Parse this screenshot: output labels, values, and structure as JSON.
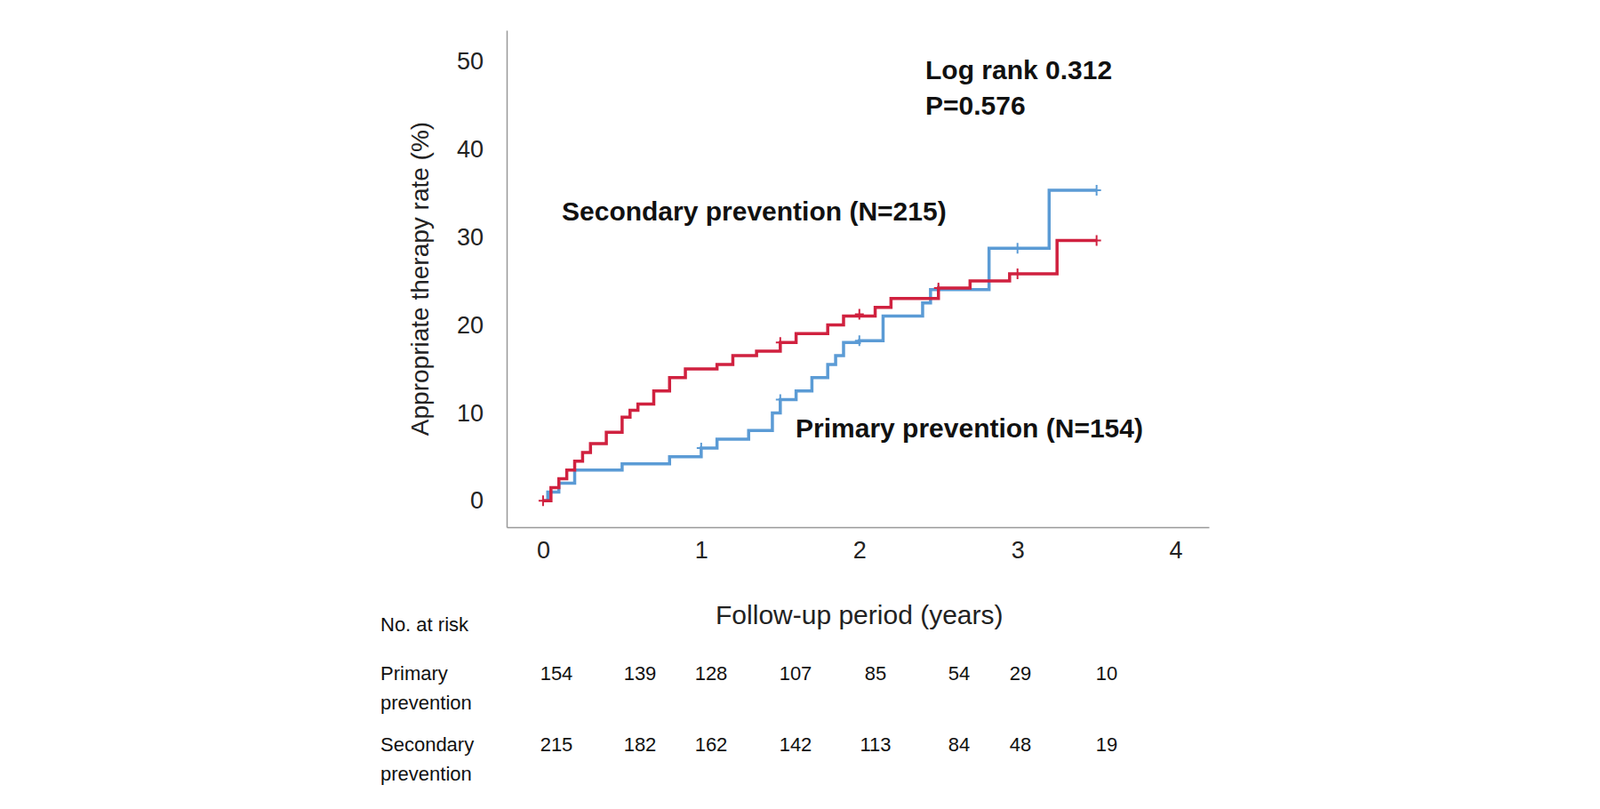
{
  "chart_data": {
    "type": "step",
    "x_label": "Follow-up period (years)",
    "y_label": "Appropriate therapy rate (%)",
    "xlim": [
      -0.23,
      4.21
    ],
    "ylim": [
      -3,
      53.5
    ],
    "xticks": [
      0,
      1,
      2,
      3,
      4
    ],
    "yticks": [
      0,
      10,
      20,
      30,
      40,
      50
    ],
    "grid": false,
    "annotations": [
      "Log rank 0.312",
      "P=0.576"
    ],
    "series": [
      {
        "name": "Primary prevention (N=154)",
        "color": "#5b9bd5",
        "x": [
          0,
          0.03,
          0.1,
          0.2,
          0.5,
          0.8,
          1.0,
          1.1,
          1.3,
          1.45,
          1.5,
          1.6,
          1.7,
          1.8,
          1.85,
          1.9,
          2.0,
          2.15,
          2.4,
          2.45,
          2.82,
          3.2,
          3.5
        ],
        "values": [
          0,
          1,
          2,
          3.5,
          4.2,
          5,
          6,
          7,
          8,
          10,
          11.5,
          12.5,
          14,
          15.5,
          16.5,
          18,
          18.2,
          21,
          22.5,
          24,
          28.7,
          35.3,
          35.3
        ],
        "censored_x": [
          1.0,
          1.5,
          2.0,
          2.5,
          3.0,
          3.5
        ],
        "censored_values": [
          6,
          11.5,
          18.2,
          24,
          28.7,
          35.3
        ]
      },
      {
        "name": "Secondary prevention (N=215)",
        "color": "#d0213f",
        "x": [
          0,
          0.05,
          0.1,
          0.15,
          0.2,
          0.25,
          0.3,
          0.4,
          0.5,
          0.55,
          0.6,
          0.7,
          0.8,
          0.9,
          1.1,
          1.2,
          1.35,
          1.5,
          1.6,
          1.8,
          1.9,
          2.1,
          2.2,
          2.5,
          2.7,
          2.95,
          3.25,
          3.5
        ],
        "values": [
          0,
          1.5,
          2.5,
          3.5,
          4.5,
          5.5,
          6.5,
          7.8,
          9.5,
          10.3,
          11,
          12.5,
          14,
          15,
          15.5,
          16.5,
          17,
          18,
          19,
          20,
          21,
          22,
          23,
          24.2,
          25,
          25.8,
          29.6,
          29.6
        ],
        "censored_x": [
          0,
          1.5,
          2.0,
          2.5,
          3.0,
          3.5
        ],
        "censored_values": [
          0,
          18,
          21.2,
          24.2,
          25.8,
          29.6
        ]
      }
    ],
    "risk_table": {
      "title": "No. at risk",
      "rows": [
        {
          "label": "Primary prevention",
          "values": [
            154,
            139,
            128,
            107,
            85,
            54,
            29,
            10
          ]
        },
        {
          "label": "Secondary prevention",
          "values": [
            215,
            182,
            162,
            142,
            113,
            84,
            48,
            19
          ]
        }
      ]
    }
  }
}
